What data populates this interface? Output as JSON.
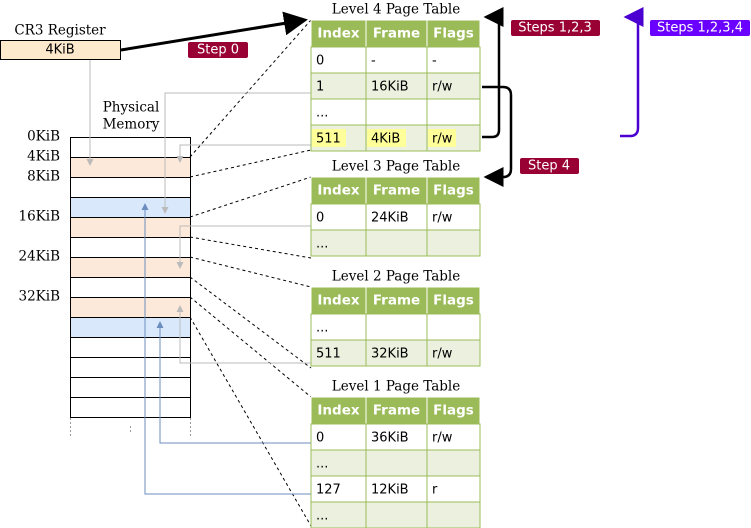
{
  "cr3": {
    "label": "CR3 Register",
    "value": "4KiB"
  },
  "memory": {
    "title_lines": [
      "Physical",
      "Memory"
    ],
    "labels": [
      "0KiB",
      "4KiB",
      "8KiB",
      "16KiB",
      "24KiB",
      "32KiB"
    ]
  },
  "steps": [
    "Step 0",
    "Steps 1,2,3",
    "Step 4",
    "Steps 1,2,3,4"
  ],
  "tables": [
    {
      "title": "Level 4 Page Table",
      "header": [
        "Index",
        "Frame",
        "Flags"
      ],
      "rows": [
        [
          "0",
          "-",
          "-"
        ],
        [
          "1",
          "16KiB",
          "r/w"
        ],
        [
          "...",
          "",
          ""
        ],
        [
          "511",
          "4KiB",
          "r/w"
        ]
      ]
    },
    {
      "title": "Level 3 Page Table",
      "header": [
        "Index",
        "Frame",
        "Flags"
      ],
      "rows": [
        [
          "0",
          "24KiB",
          "r/w"
        ],
        [
          "...",
          "",
          ""
        ]
      ]
    },
    {
      "title": "Level 2 Page Table",
      "header": [
        "Index",
        "Frame",
        "Flags"
      ],
      "rows": [
        [
          "...",
          "",
          ""
        ],
        [
          "511",
          "32KiB",
          "r/w"
        ]
      ]
    },
    {
      "title": "Level 1 Page Table",
      "header": [
        "Index",
        "Frame",
        "Flags"
      ],
      "rows": [
        [
          "0",
          "36KiB",
          "r/w"
        ],
        [
          "...",
          "",
          ""
        ],
        [
          "127",
          "12KiB",
          "r"
        ],
        [
          "...",
          "",
          ""
        ]
      ]
    }
  ]
}
